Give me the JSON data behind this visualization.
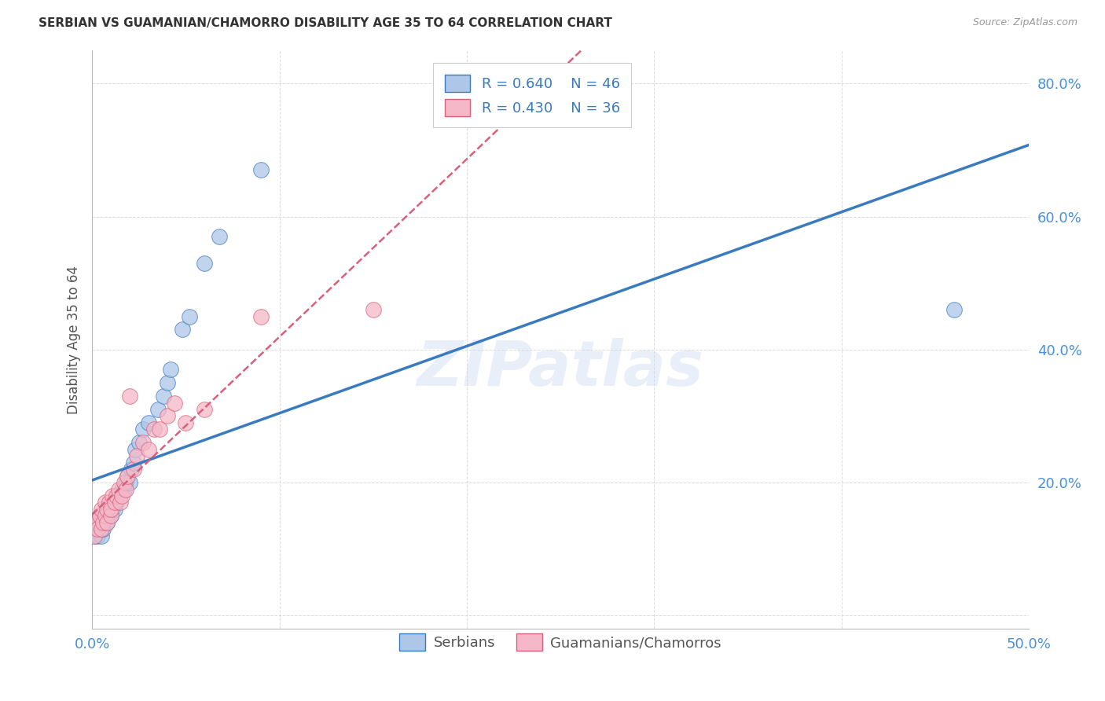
{
  "title": "SERBIAN VS GUAMANIAN/CHAMORRO DISABILITY AGE 35 TO 64 CORRELATION CHART",
  "source": "Source: ZipAtlas.com",
  "ylabel_label": "Disability Age 35 to 64",
  "xmin": 0.0,
  "xmax": 0.5,
  "ymin": -0.02,
  "ymax": 0.85,
  "xticks": [
    0.0,
    0.1,
    0.2,
    0.3,
    0.4,
    0.5
  ],
  "xtick_labels": [
    "0.0%",
    "",
    "",
    "",
    "",
    "50.0%"
  ],
  "yticks": [
    0.0,
    0.2,
    0.4,
    0.6,
    0.8
  ],
  "ytick_labels": [
    "",
    "20.0%",
    "40.0%",
    "60.0%",
    "80.0%"
  ],
  "legend_r1": "R = 0.640",
  "legend_n1": "N = 46",
  "legend_r2": "R = 0.430",
  "legend_n2": "N = 36",
  "color_serbian": "#aec6e8",
  "color_guamanian": "#f4b8c8",
  "trendline_serbian_color": "#3a7abf",
  "trendline_guamanian_color": "#d9607a",
  "watermark": "ZIPatlas",
  "serbian_x": [
    0.001,
    0.002,
    0.003,
    0.003,
    0.004,
    0.004,
    0.005,
    0.005,
    0.006,
    0.006,
    0.007,
    0.007,
    0.008,
    0.008,
    0.009,
    0.009,
    0.01,
    0.01,
    0.011,
    0.011,
    0.012,
    0.012,
    0.013,
    0.014,
    0.015,
    0.016,
    0.017,
    0.018,
    0.019,
    0.02,
    0.021,
    0.022,
    0.023,
    0.025,
    0.027,
    0.03,
    0.035,
    0.038,
    0.04,
    0.042,
    0.048,
    0.052,
    0.06,
    0.068,
    0.09,
    0.46
  ],
  "serbian_y": [
    0.12,
    0.13,
    0.12,
    0.14,
    0.13,
    0.15,
    0.12,
    0.14,
    0.13,
    0.15,
    0.14,
    0.16,
    0.14,
    0.16,
    0.15,
    0.16,
    0.15,
    0.17,
    0.16,
    0.17,
    0.16,
    0.17,
    0.17,
    0.18,
    0.18,
    0.19,
    0.19,
    0.2,
    0.21,
    0.2,
    0.22,
    0.23,
    0.25,
    0.26,
    0.28,
    0.29,
    0.31,
    0.33,
    0.35,
    0.37,
    0.43,
    0.45,
    0.53,
    0.57,
    0.67,
    0.46
  ],
  "guamanian_x": [
    0.001,
    0.002,
    0.003,
    0.004,
    0.005,
    0.005,
    0.006,
    0.007,
    0.007,
    0.008,
    0.008,
    0.009,
    0.01,
    0.01,
    0.011,
    0.012,
    0.013,
    0.014,
    0.015,
    0.016,
    0.017,
    0.018,
    0.019,
    0.02,
    0.022,
    0.024,
    0.027,
    0.03,
    0.033,
    0.036,
    0.04,
    0.044,
    0.05,
    0.06,
    0.09,
    0.15
  ],
  "guamanian_y": [
    0.12,
    0.14,
    0.13,
    0.15,
    0.13,
    0.16,
    0.14,
    0.15,
    0.17,
    0.14,
    0.16,
    0.17,
    0.15,
    0.16,
    0.18,
    0.17,
    0.18,
    0.19,
    0.17,
    0.18,
    0.2,
    0.19,
    0.21,
    0.33,
    0.22,
    0.24,
    0.26,
    0.25,
    0.28,
    0.28,
    0.3,
    0.32,
    0.29,
    0.31,
    0.45,
    0.46
  ],
  "background_color": "#ffffff",
  "grid_color": "#cccccc"
}
